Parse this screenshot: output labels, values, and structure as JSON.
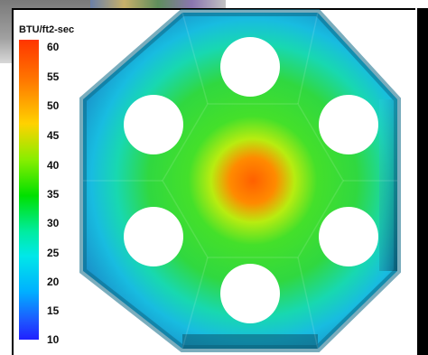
{
  "legend": {
    "title": "BTU/ft2-sec",
    "ticks": [
      "60",
      "55",
      "50",
      "45",
      "40",
      "35",
      "30",
      "25",
      "20",
      "15",
      "10"
    ]
  },
  "colors": {
    "hot": "#ff4a00",
    "mid": "#3de01a",
    "cool": "#18c0e0",
    "edge": "#0a5a70"
  },
  "sim": {
    "type": "heat-flux hexagonal cross-section",
    "holes": 6
  }
}
